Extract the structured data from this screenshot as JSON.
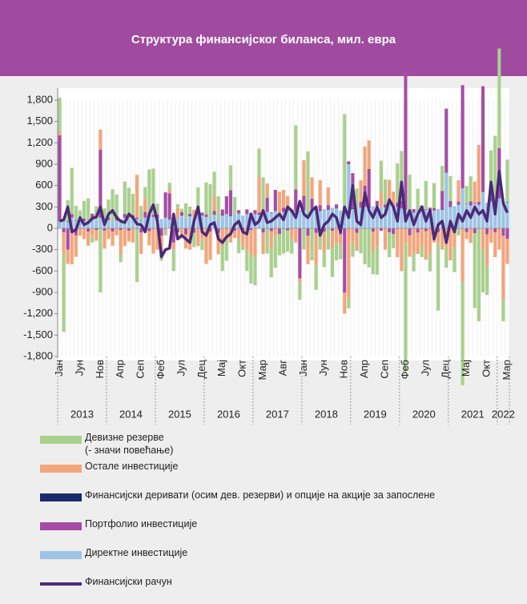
{
  "chart_data": {
    "type": "bar",
    "title": "Структура финансијског биланса, мил. евра",
    "categories": [
      "Јан",
      null,
      null,
      null,
      null,
      "Јун",
      null,
      null,
      null,
      null,
      "Нов",
      null,
      null,
      null,
      null,
      "Апр",
      null,
      null,
      null,
      null,
      "Сеп",
      null,
      null,
      null,
      null,
      "Феб",
      null,
      null,
      null,
      null,
      "Јул",
      null,
      null,
      null,
      null,
      "Дец",
      null,
      null,
      null,
      null,
      "Мај",
      null,
      null,
      null,
      null,
      "Окт",
      null,
      null,
      null,
      null,
      "Мар",
      null,
      null,
      null,
      null,
      "Авг",
      null,
      null,
      null,
      null,
      "Јан",
      null,
      null,
      null,
      null,
      "Јун",
      null,
      null,
      null,
      null,
      "Нов",
      null,
      null,
      null,
      null,
      "Апр",
      null,
      null,
      null,
      null,
      "Сеп",
      null,
      null,
      null,
      null,
      "Феб",
      null,
      null,
      null,
      null,
      "Јул",
      null,
      null,
      null,
      null,
      "Дец",
      null,
      null,
      null,
      null,
      "Мај",
      null,
      null,
      null,
      null,
      "Окт",
      null,
      null,
      null,
      null,
      "Мар"
    ],
    "years": [
      "2013",
      "2014",
      "2015",
      "2016",
      "2017",
      "2018",
      "2019",
      "2020",
      "2021",
      "2022"
    ],
    "ylim": [
      -1800,
      1800
    ],
    "yticks": [
      {
        "value": 1800,
        "label": "1,800"
      },
      {
        "value": 1500,
        "label": "1,500"
      },
      {
        "value": 1200,
        "label": "1,200"
      },
      900,
      600,
      300,
      0,
      -300,
      -600,
      -900,
      {
        "value": -1200,
        "label": "-1,200"
      },
      {
        "value": -1500,
        "label": "-1,500"
      },
      {
        "value": -1800,
        "label": "-1,800"
      }
    ],
    "series": [
      {
        "name": "Девизне резерве\n(- значи повећање)",
        "color": "#a9d18e",
        "values": [
          480,
          -1100,
          300,
          650,
          200,
          100,
          250,
          300,
          -100,
          200,
          -900,
          150,
          250,
          450,
          300,
          -100,
          450,
          450,
          300,
          -750,
          200,
          150,
          650,
          650,
          150,
          -100,
          -50,
          100,
          -300,
          50,
          50,
          200,
          100,
          -200,
          350,
          -150,
          450,
          450,
          350,
          300,
          -350,
          -300,
          350,
          250,
          -200,
          -50,
          -300,
          -400,
          -400,
          400,
          500,
          -350,
          -400,
          -450,
          -300,
          -350,
          -300,
          -200,
          900,
          -250,
          -300,
          850,
          -450,
          -350,
          -300,
          -200,
          -300,
          -400,
          -250,
          -200,
          1300,
          -150,
          -200,
          300,
          -350,
          -500,
          -550,
          -300,
          -400,
          450,
          350,
          -350,
          -200,
          550,
          700,
          -1800,
          550,
          -250,
          300,
          -150,
          400,
          -250,
          350,
          -950,
          350,
          -300,
          350,
          -350,
          -100,
          -1450,
          250,
          350,
          -1050,
          -1300,
          -600,
          -400,
          650,
          900,
          1400,
          -300,
          600
        ]
      },
      {
        "name": "Остале инвестиције",
        "color": "#f4a57a",
        "values": [
          50,
          -300,
          -200,
          -500,
          -300,
          -100,
          -150,
          -200,
          -100,
          -150,
          280,
          -250,
          -150,
          -200,
          -100,
          -350,
          -250,
          -150,
          -200,
          600,
          -300,
          200,
          -200,
          -350,
          -300,
          -250,
          -50,
          50,
          -100,
          150,
          -100,
          -200,
          -300,
          100,
          -250,
          -150,
          -500,
          -400,
          200,
          -300,
          -250,
          -150,
          -200,
          -100,
          -150,
          -200,
          -300,
          -350,
          -400,
          500,
          -300,
          200,
          -250,
          -100,
          300,
          250,
          200,
          -150,
          -200,
          -50,
          500,
          -400,
          300,
          -450,
          350,
          -300,
          250,
          -250,
          -200,
          -150,
          -300,
          -970,
          -200,
          -250,
          300,
          550,
          400,
          -300,
          -250,
          200,
          -300,
          350,
          200,
          -400,
          -600,
          -200,
          -300,
          -350,
          -300,
          -250,
          -400,
          -350,
          -200,
          -150,
          -300,
          -250,
          -450,
          -200,
          300,
          -750,
          -100,
          -200,
          300,
          800,
          -300,
          -450,
          -200,
          -350,
          -300,
          -900,
          -350
        ]
      },
      {
        "name": "Финансијски деривати (осим дев. резерви) и опције на акције за запослене",
        "color": "#1a2a6c",
        "values": [
          5,
          -5,
          5,
          -5,
          5,
          -5,
          5,
          -5,
          5,
          -5,
          5,
          -5,
          5,
          -5,
          5,
          -5,
          5,
          -5,
          5,
          -5,
          5,
          -5,
          5,
          -5,
          5,
          -5,
          5,
          -5,
          5,
          -5,
          5,
          -5,
          5,
          -5,
          5,
          -5,
          5,
          -5,
          5,
          -5,
          5,
          -5,
          5,
          -5,
          5,
          -5,
          5,
          -5,
          5,
          -5,
          5,
          -5,
          5,
          -5,
          5,
          -5,
          5,
          -5,
          5,
          -5,
          5,
          -5,
          5,
          -5,
          5,
          -5,
          5,
          -5,
          5,
          -5,
          5,
          -5,
          5,
          -5,
          5,
          -5,
          5,
          -5,
          5,
          -5,
          5,
          -5,
          5,
          -5,
          5,
          -5,
          5,
          -5,
          5,
          -5,
          5,
          -5,
          5,
          -5,
          5,
          -5,
          5,
          -5,
          5,
          -5,
          5,
          -5,
          5,
          -5,
          5,
          -5,
          5,
          -5,
          5,
          -5,
          5
        ]
      },
      {
        "name": "Портфолио инвестиције",
        "color": "#a64ca6",
        "values": [
          1200,
          -50,
          -300,
          50,
          -100,
          20,
          30,
          -40,
          60,
          -20,
          950,
          -30,
          30,
          -40,
          60,
          -20,
          50,
          -30,
          40,
          20,
          -60,
          80,
          -40,
          30,
          50,
          -100,
          350,
          370,
          -200,
          -50,
          40,
          -80,
          30,
          -60,
          20,
          40,
          30,
          -40,
          50,
          -60,
          80,
          250,
          360,
          -30,
          40,
          -50,
          60,
          -20,
          50,
          30,
          -60,
          200,
          -40,
          300,
          -80,
          60,
          -30,
          40,
          300,
          -700,
          200,
          -100,
          150,
          -60,
          80,
          -40,
          60,
          -30,
          50,
          -80,
          -900,
          40,
          500,
          -60,
          80,
          300,
          550,
          -40,
          60,
          -30,
          40,
          -50,
          -80,
          60,
          100,
          1950,
          -100,
          50,
          -60,
          80,
          -40,
          60,
          30,
          -50,
          260,
          900,
          80,
          -60,
          40,
          1450,
          -50,
          60,
          -70,
          40,
          1480,
          -80,
          60,
          -50,
          700,
          -100,
          -150
        ]
      },
      {
        "name": "Директне инвестиције",
        "color": "#9dc3e6",
        "values": [
          100,
          120,
          90,
          150,
          110,
          130,
          100,
          120,
          140,
          110,
          150,
          130,
          120,
          100,
          110,
          130,
          150,
          120,
          140,
          130,
          110,
          150,
          170,
          160,
          140,
          130,
          150,
          120,
          160,
          140,
          180,
          150,
          170,
          160,
          200,
          180,
          160,
          170,
          190,
          150,
          180,
          200,
          170,
          190,
          210,
          180,
          200,
          220,
          200,
          190,
          210,
          230,
          220,
          240,
          210,
          230,
          250,
          220,
          240,
          260,
          250,
          230,
          260,
          280,
          240,
          270,
          260,
          290,
          280,
          250,
          300,
          900,
          270,
          260,
          290,
          300,
          280,
          310,
          320,
          300,
          290,
          330,
          310,
          300,
          280,
          260,
          200,
          220,
          250,
          240,
          260,
          230,
          250,
          270,
          260,
          780,
          300,
          310,
          330,
          560,
          340,
          320,
          350,
          330,
          510,
          360,
          380,
          400,
          420,
          380,
          360
        ]
      },
      {
        "name": "Финансијски рачун",
        "type": "line",
        "color": "#4b2a78",
        "values": [
          100,
          120,
          300,
          -50,
          -20,
          150,
          50,
          80,
          140,
          160,
          300,
          50,
          200,
          250,
          150,
          100,
          80,
          200,
          150,
          60,
          50,
          -50,
          200,
          330,
          100,
          -400,
          -300,
          -280,
          200,
          -150,
          -100,
          -150,
          -200,
          100,
          300,
          -50,
          -100,
          50,
          80,
          -150,
          -200,
          -120,
          -80,
          50,
          100,
          -50,
          -80,
          200,
          50,
          100,
          250,
          80,
          100,
          150,
          200,
          120,
          300,
          250,
          150,
          380,
          200,
          150,
          250,
          300,
          -100,
          50,
          100,
          200,
          150,
          -50,
          300,
          150,
          600,
          100,
          50,
          500,
          250,
          150,
          300,
          150,
          200,
          400,
          300,
          100,
          650,
          100,
          250,
          50,
          200,
          300,
          100,
          250,
          -150,
          50,
          100,
          -200,
          100,
          -50,
          200,
          100,
          250,
          150,
          300,
          200,
          250,
          100,
          650,
          200,
          800,
          350,
          220
        ]
      }
    ]
  }
}
